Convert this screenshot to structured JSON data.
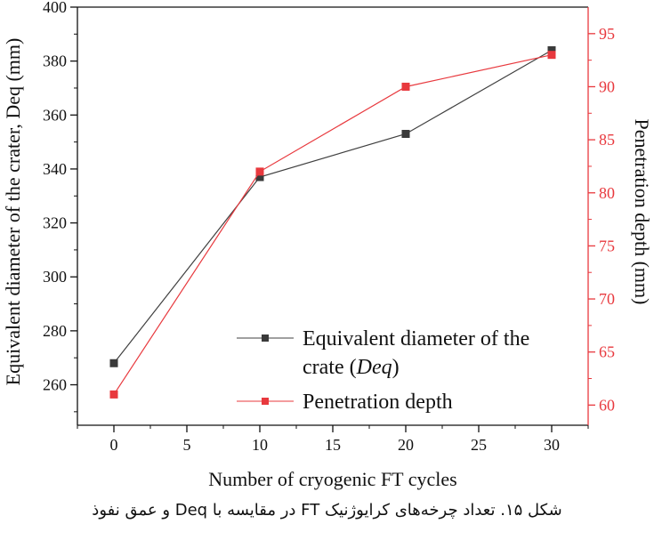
{
  "caption": "شکل ۱۵. تعداد چرخه‌های کرایوژنیک FT در مقایسه با Deq و عمق نفوذ",
  "chart_data": {
    "type": "line",
    "x": [
      0,
      10,
      20,
      30
    ],
    "xlabel": "Number of cryogenic FT cycles",
    "xlim": [
      -2.5,
      32.5
    ],
    "xticks": [
      0,
      5,
      10,
      15,
      20,
      25,
      30
    ],
    "ylabel_left": "Equivalent diameter of the crater, Deq (mm)",
    "ylim_left": [
      245,
      400
    ],
    "yticks_left": [
      260,
      280,
      300,
      320,
      340,
      360,
      380,
      400
    ],
    "ylabel_right": "Penetration depth (mm)",
    "ylim_right": [
      58.1,
      97.5
    ],
    "yticks_right": [
      60,
      65,
      70,
      75,
      80,
      85,
      90,
      95
    ],
    "right_axis_color": "#e8393e",
    "grid": false,
    "legend_position": "bottom-right",
    "series": [
      {
        "name_line1": "Equivalent diameter of the",
        "name_line2_prefix": "crate (",
        "name_line2_italic": "Deq",
        "name_line2_suffix": ")",
        "axis": "left",
        "color": "#404040",
        "marker_color": "#3a3a3a",
        "values": [
          268,
          337,
          353,
          384
        ]
      },
      {
        "name": "Penetration depth",
        "axis": "right",
        "color": "#e8393e",
        "marker_color": "#e8393e",
        "values": [
          61,
          82,
          90,
          93
        ]
      }
    ]
  }
}
